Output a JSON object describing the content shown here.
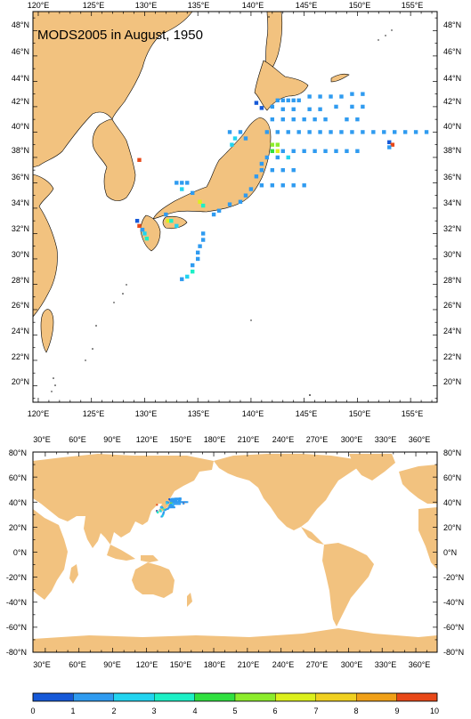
{
  "title": "MODS2005 in August, 1950",
  "colors": {
    "land": "#f2c27f",
    "ocean": "#ffffff",
    "frame": "#000000"
  },
  "regional_map": {
    "lon_labels": [
      "120°E",
      "125°E",
      "130°E",
      "135°E",
      "140°E",
      "145°E",
      "150°E",
      "155°E"
    ],
    "lat_labels_left": [
      "48°N",
      "46°N",
      "44°N",
      "42°N",
      "40°N",
      "38°N",
      "36°N",
      "34°N",
      "32°N",
      "30°N",
      "28°N",
      "26°N",
      "24°N",
      "22°N",
      "20°N"
    ],
    "lat_labels_right": [
      "48°N",
      "46°N",
      "44°N",
      "42°N",
      "40°N",
      "38°N",
      "36°N",
      "34°N",
      "32°N",
      "30°N",
      "28°N",
      "26°N",
      "24°N",
      "22°N",
      "20°N"
    ]
  },
  "global_map": {
    "lon_labels": [
      "30°E",
      "60°E",
      "90°E",
      "120°E",
      "150°E",
      "180°E",
      "210°E",
      "240°E",
      "270°E",
      "300°E",
      "330°E",
      "360°E"
    ],
    "lat_labels_left": [
      "80°N",
      "60°N",
      "40°N",
      "20°N",
      "0°N",
      "-20°N",
      "-40°N",
      "-60°N",
      "-80°N"
    ],
    "lat_labels_right": [
      "80°N",
      "60°N",
      "40°N",
      "20°N",
      "0°N",
      "-20°N",
      "-40°N",
      "-60°N",
      "-80°N"
    ]
  },
  "colorbar": {
    "labels": [
      "0",
      "1",
      "2",
      "3",
      "4",
      "5",
      "6",
      "7",
      "8",
      "9",
      "10"
    ],
    "colors": [
      "#1659d8",
      "#2f9bf0",
      "#22d4f0",
      "#1cf0c6",
      "#30e040",
      "#8cec2c",
      "#dcf01c",
      "#f0d020",
      "#f0a018",
      "#e84818"
    ]
  },
  "chart_data": {
    "type": "heatmap",
    "title": "MODS2005 in August, 1950",
    "points": [
      {
        "lon": 140.5,
        "lat": 42.3,
        "v": 0
      },
      {
        "lon": 141.0,
        "lat": 41.9,
        "v": 0
      },
      {
        "lon": 142.5,
        "lat": 42.5,
        "v": 1
      },
      {
        "lon": 143.0,
        "lat": 42.5,
        "v": 1
      },
      {
        "lon": 143.5,
        "lat": 42.5,
        "v": 1
      },
      {
        "lon": 144.0,
        "lat": 42.5,
        "v": 1
      },
      {
        "lon": 144.5,
        "lat": 42.5,
        "v": 1
      },
      {
        "lon": 145.5,
        "lat": 42.8,
        "v": 1
      },
      {
        "lon": 146.5,
        "lat": 42.8,
        "v": 1
      },
      {
        "lon": 147.5,
        "lat": 42.8,
        "v": 1
      },
      {
        "lon": 148.5,
        "lat": 42.8,
        "v": 1
      },
      {
        "lon": 149.5,
        "lat": 43.0,
        "v": 1
      },
      {
        "lon": 150.5,
        "lat": 43.0,
        "v": 1
      },
      {
        "lon": 142.0,
        "lat": 42.0,
        "v": 1
      },
      {
        "lon": 143.0,
        "lat": 41.8,
        "v": 1
      },
      {
        "lon": 144.0,
        "lat": 41.8,
        "v": 1
      },
      {
        "lon": 145.5,
        "lat": 41.8,
        "v": 1
      },
      {
        "lon": 146.5,
        "lat": 41.8,
        "v": 1
      },
      {
        "lon": 148.0,
        "lat": 42.0,
        "v": 1
      },
      {
        "lon": 149.5,
        "lat": 42.0,
        "v": 1
      },
      {
        "lon": 150.5,
        "lat": 42.0,
        "v": 1
      },
      {
        "lon": 142.0,
        "lat": 41.0,
        "v": 1
      },
      {
        "lon": 143.0,
        "lat": 41.0,
        "v": 1
      },
      {
        "lon": 144.0,
        "lat": 41.0,
        "v": 1
      },
      {
        "lon": 145.0,
        "lat": 41.0,
        "v": 1
      },
      {
        "lon": 146.0,
        "lat": 41.0,
        "v": 1
      },
      {
        "lon": 147.0,
        "lat": 41.0,
        "v": 1
      },
      {
        "lon": 149.0,
        "lat": 41.0,
        "v": 1
      },
      {
        "lon": 150.0,
        "lat": 41.0,
        "v": 1
      },
      {
        "lon": 141.5,
        "lat": 40.0,
        "v": 1
      },
      {
        "lon": 142.5,
        "lat": 40.0,
        "v": 1
      },
      {
        "lon": 143.5,
        "lat": 40.0,
        "v": 1
      },
      {
        "lon": 144.5,
        "lat": 40.0,
        "v": 1
      },
      {
        "lon": 145.5,
        "lat": 40.0,
        "v": 1
      },
      {
        "lon": 146.5,
        "lat": 40.0,
        "v": 1
      },
      {
        "lon": 147.5,
        "lat": 40.0,
        "v": 1
      },
      {
        "lon": 148.5,
        "lat": 40.0,
        "v": 1
      },
      {
        "lon": 149.5,
        "lat": 40.0,
        "v": 1
      },
      {
        "lon": 150.5,
        "lat": 40.0,
        "v": 1
      },
      {
        "lon": 151.5,
        "lat": 40.0,
        "v": 1
      },
      {
        "lon": 152.5,
        "lat": 40.0,
        "v": 1
      },
      {
        "lon": 153.5,
        "lat": 40.0,
        "v": 1
      },
      {
        "lon": 154.5,
        "lat": 40.0,
        "v": 1
      },
      {
        "lon": 155.5,
        "lat": 40.0,
        "v": 1
      },
      {
        "lon": 156.5,
        "lat": 40.0,
        "v": 1
      },
      {
        "lon": 138.0,
        "lat": 40.0,
        "v": 1
      },
      {
        "lon": 139.0,
        "lat": 40.0,
        "v": 1
      },
      {
        "lon": 138.5,
        "lat": 39.5,
        "v": 2
      },
      {
        "lon": 139.5,
        "lat": 39.5,
        "v": 1
      },
      {
        "lon": 138.2,
        "lat": 39.0,
        "v": 2
      },
      {
        "lon": 142.0,
        "lat": 39.0,
        "v": 5
      },
      {
        "lon": 142.5,
        "lat": 39.0,
        "v": 5
      },
      {
        "lon": 142.0,
        "lat": 38.5,
        "v": 4
      },
      {
        "lon": 142.5,
        "lat": 38.5,
        "v": 6
      },
      {
        "lon": 143.0,
        "lat": 38.5,
        "v": 1
      },
      {
        "lon": 144.0,
        "lat": 38.5,
        "v": 1
      },
      {
        "lon": 145.0,
        "lat": 38.5,
        "v": 1
      },
      {
        "lon": 146.0,
        "lat": 38.5,
        "v": 1
      },
      {
        "lon": 147.0,
        "lat": 38.5,
        "v": 1
      },
      {
        "lon": 148.0,
        "lat": 38.5,
        "v": 1
      },
      {
        "lon": 149.0,
        "lat": 38.5,
        "v": 1
      },
      {
        "lon": 150.0,
        "lat": 38.5,
        "v": 1
      },
      {
        "lon": 141.5,
        "lat": 38.0,
        "v": 1
      },
      {
        "lon": 142.5,
        "lat": 38.0,
        "v": 1
      },
      {
        "lon": 143.5,
        "lat": 38.0,
        "v": 2
      },
      {
        "lon": 141.0,
        "lat": 37.5,
        "v": 1
      },
      {
        "lon": 153.0,
        "lat": 39.2,
        "v": 0
      },
      {
        "lon": 153.3,
        "lat": 39.0,
        "v": 9
      },
      {
        "lon": 153.0,
        "lat": 38.8,
        "v": 1
      },
      {
        "lon": 141.0,
        "lat": 37.0,
        "v": 1
      },
      {
        "lon": 142.0,
        "lat": 37.0,
        "v": 1
      },
      {
        "lon": 143.0,
        "lat": 37.0,
        "v": 1
      },
      {
        "lon": 144.0,
        "lat": 37.0,
        "v": 1
      },
      {
        "lon": 141.0,
        "lat": 35.8,
        "v": 1
      },
      {
        "lon": 142.0,
        "lat": 35.8,
        "v": 1
      },
      {
        "lon": 143.0,
        "lat": 35.8,
        "v": 1
      },
      {
        "lon": 144.0,
        "lat": 35.8,
        "v": 1
      },
      {
        "lon": 145.0,
        "lat": 35.8,
        "v": 1
      },
      {
        "lon": 140.5,
        "lat": 36.5,
        "v": 1
      },
      {
        "lon": 140.0,
        "lat": 35.5,
        "v": 1
      },
      {
        "lon": 139.5,
        "lat": 35.0,
        "v": 1
      },
      {
        "lon": 139.0,
        "lat": 34.5,
        "v": 1
      },
      {
        "lon": 138.0,
        "lat": 34.3,
        "v": 1
      },
      {
        "lon": 137.0,
        "lat": 33.8,
        "v": 1
      },
      {
        "lon": 136.5,
        "lat": 33.5,
        "v": 1
      },
      {
        "lon": 133.0,
        "lat": 36.0,
        "v": 1
      },
      {
        "lon": 133.5,
        "lat": 36.0,
        "v": 1
      },
      {
        "lon": 134.0,
        "lat": 36.0,
        "v": 1
      },
      {
        "lon": 133.5,
        "lat": 35.5,
        "v": 2
      },
      {
        "lon": 134.5,
        "lat": 35.2,
        "v": 1
      },
      {
        "lon": 135.2,
        "lat": 34.5,
        "v": 6
      },
      {
        "lon": 135.5,
        "lat": 34.2,
        "v": 3
      },
      {
        "lon": 132.0,
        "lat": 33.5,
        "v": 1
      },
      {
        "lon": 132.2,
        "lat": 33.0,
        "v": 6
      },
      {
        "lon": 132.5,
        "lat": 33.0,
        "v": 3
      },
      {
        "lon": 133.0,
        "lat": 32.6,
        "v": 2
      },
      {
        "lon": 129.3,
        "lat": 33.0,
        "v": 0
      },
      {
        "lon": 129.5,
        "lat": 32.6,
        "v": 9
      },
      {
        "lon": 129.8,
        "lat": 32.3,
        "v": 1
      },
      {
        "lon": 130.0,
        "lat": 32.0,
        "v": 2
      },
      {
        "lon": 130.2,
        "lat": 31.6,
        "v": 3
      },
      {
        "lon": 129.5,
        "lat": 37.8,
        "v": 9
      },
      {
        "lon": 135.5,
        "lat": 32.0,
        "v": 1
      },
      {
        "lon": 135.5,
        "lat": 31.5,
        "v": 1
      },
      {
        "lon": 135.2,
        "lat": 31.0,
        "v": 1
      },
      {
        "lon": 135.0,
        "lat": 30.5,
        "v": 1
      },
      {
        "lon": 135.0,
        "lat": 30.0,
        "v": 1
      },
      {
        "lon": 134.5,
        "lat": 29.5,
        "v": 1
      },
      {
        "lon": 134.5,
        "lat": 29.0,
        "v": 3
      },
      {
        "lon": 134.0,
        "lat": 28.6,
        "v": 2
      },
      {
        "lon": 133.5,
        "lat": 28.4,
        "v": 1
      }
    ]
  }
}
